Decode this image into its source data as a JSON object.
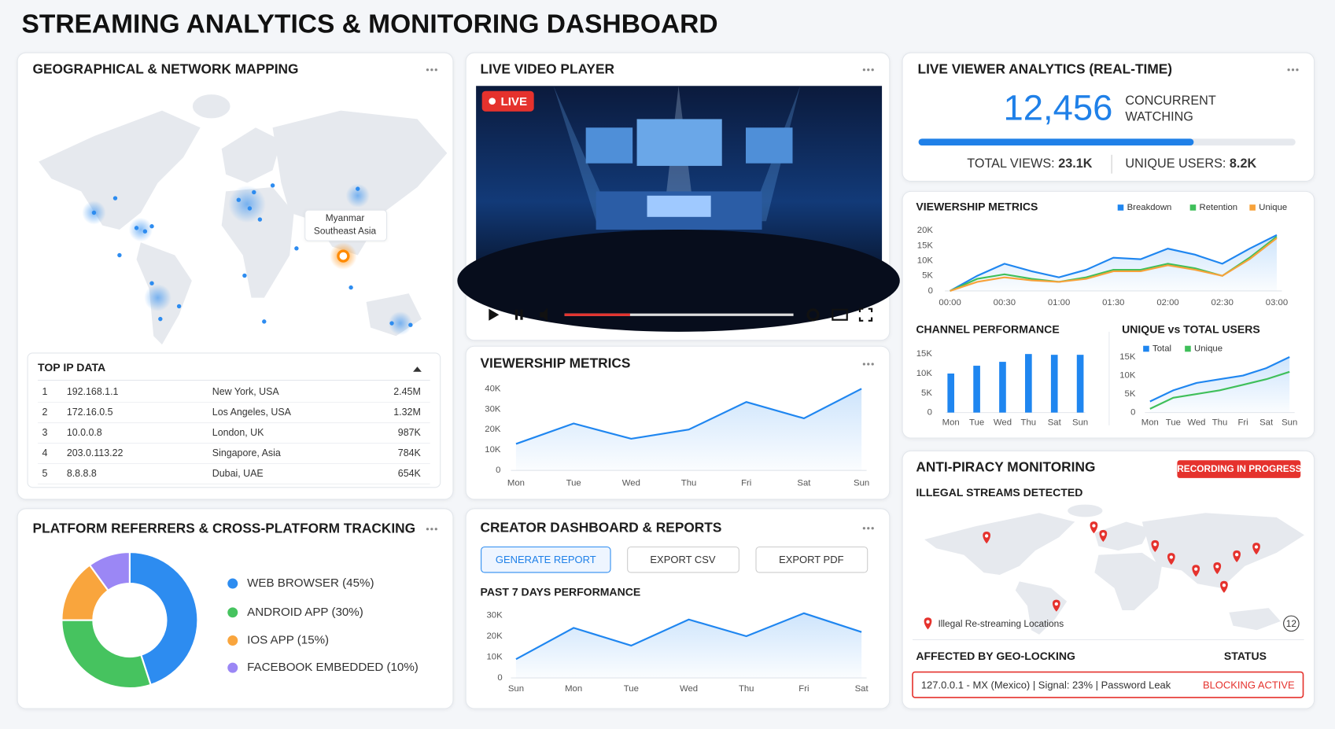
{
  "header": {
    "title": "STREAMING ANALYTICS & MONITORING DASHBOARD"
  },
  "geo": {
    "title": "GEOGRAPHICAL & NETWORK MAPPING",
    "tooltip": [
      "Myanmar",
      "Southeast Asia"
    ],
    "table": {
      "title": "TOP IP DATA",
      "rows": [
        [
          "1",
          "192.168.1.1",
          "New York, USA",
          "2.45M"
        ],
        [
          "2",
          "172.16.0.5",
          "Los Angeles, USA",
          "1.32M"
        ],
        [
          "3",
          "10.0.0.8",
          "London, UK",
          "987K"
        ],
        [
          "4",
          "203.0.113.22",
          "Singapore, Asia",
          "784K"
        ],
        [
          "5",
          "8.8.8.8",
          "Dubai, UAE",
          "654K"
        ]
      ]
    }
  },
  "player": {
    "title": "LIVE VIDEO PLAYER",
    "badge": "LIVE"
  },
  "viewer": {
    "title": "LIVE VIEWER ANALYTICS (REAL-TIME)",
    "count": "12,456",
    "count_label": [
      "CONCURRENT",
      "WATCHING"
    ],
    "progress": 73,
    "total_views_label": "TOTAL VIEWS:",
    "total_views": "23.1K",
    "unique_label": "UNIQUE USERS:",
    "unique": "8.2K"
  },
  "creator": {
    "title": "CREATOR DASHBOARD & REPORTS",
    "buttons": [
      "GENERATE REPORT",
      "EXPORT CSV",
      "EXPORT PDF"
    ]
  },
  "piracy": {
    "title": "ANTI-PIRACY MONITORING",
    "badge": "RECORDING IN PROGRESS",
    "subtitle": "ILLEGAL STREAMS DETECTED",
    "legend": "Illegal Re-streaming Locations",
    "count": 12,
    "geo_title": "AFFECTED BY GEO-LOCKING",
    "status_title": "STATUS",
    "row": "127.0.0.1 - MX (Mexico) | Signal: 23% | Password Leak",
    "status": "BLOCKING ACTIVE"
  },
  "chart_data": [
    {
      "type": "line",
      "title": "VIEWERSHIP METRICS",
      "categories": [
        "Mon",
        "Tue",
        "Wed",
        "Thu",
        "Fri",
        "Sat",
        "Sun"
      ],
      "values": [
        13000,
        23000,
        15500,
        20000,
        33500,
        25500,
        40000
      ],
      "color": "#1f86f0",
      "ylim": [
        0,
        40000
      ],
      "yticks": [
        0,
        {
          "value": 10000,
          "label": "10K"
        },
        {
          "value": 20000,
          "label": "20K"
        },
        {
          "value": 30000,
          "label": "30K"
        },
        {
          "value": 40000,
          "label": "40K"
        }
      ],
      "grid": false
    },
    {
      "type": "line",
      "title": "VIEWERSHIP METRICS",
      "categories": [
        "00:00",
        null,
        "00:30",
        null,
        "01:00",
        null,
        "01:30",
        null,
        "02:00",
        null,
        "02:30",
        null,
        "03:00"
      ],
      "series": [
        {
          "name": "Breakdown",
          "color": "#1f86f0",
          "values": [
            0,
            5000,
            9000,
            6500,
            4500,
            7000,
            11000,
            10500,
            14000,
            12000,
            9000,
            14000,
            18500
          ]
        },
        {
          "name": "Retention",
          "color": "#3fbf5a",
          "values": [
            0,
            4000,
            5500,
            4000,
            3000,
            4500,
            7000,
            7000,
            9000,
            7500,
            5000,
            11000,
            18000
          ]
        },
        {
          "name": "Unique",
          "color": "#f7a23a",
          "values": [
            0,
            3000,
            4500,
            3500,
            3000,
            4000,
            6500,
            6500,
            8500,
            7000,
            5000,
            10500,
            17500
          ]
        }
      ],
      "ylim": [
        0,
        20000
      ],
      "yticks": [
        0,
        {
          "value": 5000,
          "label": "5K"
        },
        {
          "value": 10000,
          "label": "10K"
        },
        {
          "value": 15000,
          "label": "15K"
        },
        {
          "value": 20000,
          "label": "20K"
        }
      ],
      "grid": false
    },
    {
      "type": "bar",
      "title": "CHANNEL PERFORMANCE",
      "categories": [
        "Mon",
        "Tue",
        "Wed",
        "Thu",
        "Sat",
        "Sun"
      ],
      "values": [
        10000,
        12000,
        13000,
        15000,
        14800,
        14800
      ],
      "color": "#1f86f0",
      "ylim": [
        0,
        17000
      ],
      "yticks": [
        0,
        {
          "value": 5000,
          "label": "5K"
        },
        {
          "value": 10000,
          "label": "10K"
        },
        {
          "value": 15000,
          "label": "15K"
        }
      ],
      "grid": false
    },
    {
      "type": "line",
      "title": "UNIQUE vs TOTAL USERS",
      "categories": [
        "Mon",
        "Tue",
        "Wed",
        "Thu",
        "Fri",
        "Sat",
        "Sun"
      ],
      "series": [
        {
          "name": "Total",
          "color": "#1f86f0",
          "values": [
            3000,
            6000,
            8000,
            9000,
            10000,
            12000,
            15000
          ]
        },
        {
          "name": "Unique",
          "color": "#3fbf5a",
          "values": [
            1000,
            4000,
            5000,
            6000,
            7500,
            9000,
            11000
          ]
        }
      ],
      "ylim": [
        0,
        17000
      ],
      "yticks": [
        0,
        {
          "value": 5000,
          "label": "5K"
        },
        {
          "value": 10000,
          "label": "10K"
        },
        {
          "value": 15000,
          "label": "15K"
        }
      ],
      "grid": false
    },
    {
      "type": "pie",
      "title": "PLATFORM REFERRERS & CROSS-PLATFORM TRACKING",
      "categories": [
        "WEB BROWSER (45%)",
        "ANDROID APP (30%)",
        "IOS APP (15%)",
        "FACEBOOK EMBEDDED (10%)"
      ],
      "values": [
        45,
        30,
        15,
        10
      ],
      "colors": [
        "#2d8cf0",
        "#46c35f",
        "#f9a53d",
        "#9b87f5"
      ]
    },
    {
      "type": "line",
      "title": "PAST 7 DAYS PERFORMANCE",
      "categories": [
        "Sun",
        "Mon",
        "Tue",
        "Wed",
        "Thu",
        "Fri",
        "Sat"
      ],
      "values": [
        9000,
        24000,
        15500,
        28000,
        20000,
        31000,
        22000
      ],
      "color": "#1f86f0",
      "ylim": [
        0,
        33000
      ],
      "yticks": [
        0,
        {
          "value": 10000,
          "label": "10K"
        },
        {
          "value": 20000,
          "label": "20K"
        },
        {
          "value": 30000,
          "label": "30K"
        }
      ],
      "grid": false
    }
  ]
}
